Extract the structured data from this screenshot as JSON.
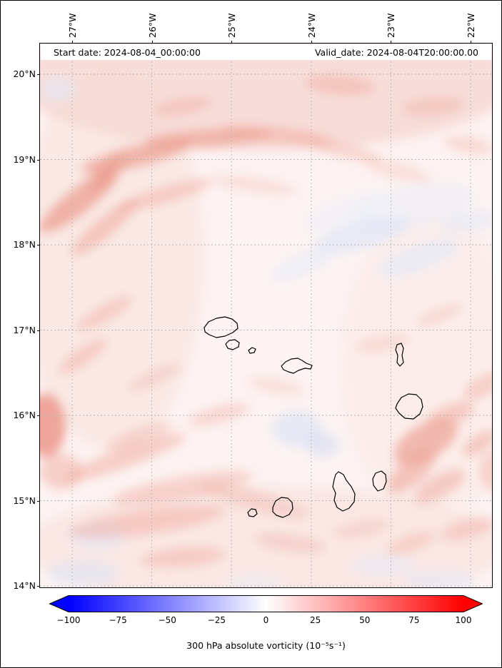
{
  "header": {
    "start_date_label": "Start date: 2024-08-04_00:00:00",
    "valid_date_label": "Valid_date: 2024-08-04T20:00:00.00"
  },
  "axes": {
    "lon_labels": [
      "27°W",
      "26°W",
      "25°W",
      "24°W",
      "23°W",
      "22°W"
    ],
    "lat_labels": [
      "20°N",
      "19°N",
      "18°N",
      "17°N",
      "16°N",
      "15°N",
      "14°N"
    ]
  },
  "colorbar": {
    "tick_labels": [
      "−100",
      "−75",
      "−50",
      "−25",
      "0",
      "25",
      "50",
      "75",
      "100"
    ],
    "label": "300 hPa absolute vorticity (10⁻⁵s⁻¹)",
    "gradient": [
      "#0000ff",
      "#ffffff",
      "#ff0000"
    ]
  },
  "chart_data": {
    "type": "heatmap",
    "variable": "300 hPa absolute vorticity",
    "units": "10⁻⁵ s⁻¹",
    "colormap": "bwr (blue-white-red) with extended triangular ends",
    "value_range": [
      -100,
      100
    ],
    "colorbar_ticks": [
      -100,
      -75,
      -50,
      -25,
      0,
      25,
      50,
      75,
      100
    ],
    "x_axis": {
      "label": "longitude",
      "tick_values_deg_west": [
        27,
        26,
        25,
        24,
        23,
        22
      ],
      "range_deg_west": [
        27.4,
        21.7
      ]
    },
    "y_axis": {
      "label": "latitude",
      "tick_values_deg_north": [
        20,
        19,
        18,
        17,
        16,
        15,
        14
      ],
      "range_deg_north": [
        14.0,
        20.35
      ]
    },
    "start_date": "2024-08-04_00:00:00",
    "valid_date": "2024-08-04T20:00:00.00",
    "region": "Cape Verde islands, eastern tropical Atlantic",
    "grid": "dashed gray graticule every 1 degree of latitude and longitude",
    "field_description": "Mostly weak positive vorticity (0 to ~25, light red) over the whole domain; stronger positive filaments (~25-50) arc along 19-19.5N across the northwest, along the west edge, over the southwest quadrant, and near 15.5-16N east of the islands; scattered weak negative patches (light blue, 0 to ~-25) near 18N in the east, around 16N in mid-domain, and south of 15N."
  },
  "map": {
    "base_color": "#fdf3f2",
    "grid_color": "#b5b5b5",
    "coast_color": "#000000",
    "blob_format": [
      "x",
      "y",
      "rx",
      "ry",
      "rotation_deg",
      "color",
      "opacity"
    ],
    "blobs": [
      [
        316,
        55,
        345,
        95,
        0,
        "#f6d6d0",
        0.75
      ],
      [
        100,
        300,
        130,
        270,
        0,
        "#f7dbd5",
        0.45
      ],
      [
        316,
        705,
        335,
        85,
        0,
        "#f7dbd5",
        0.5
      ],
      [
        550,
        450,
        130,
        210,
        0,
        "#f9e2dd",
        0.35
      ],
      [
        520,
        230,
        90,
        30,
        -12,
        "#e9edf8",
        0.55
      ],
      [
        430,
        235,
        65,
        20,
        -18,
        "#edf0fa",
        0.55
      ],
      [
        55,
        220,
        70,
        18,
        -38,
        "#ec9f91",
        0.75
      ],
      [
        95,
        180,
        35,
        12,
        -45,
        "#ea9a8b",
        0.6
      ],
      [
        135,
        158,
        80,
        15,
        -14,
        "#ec9f91",
        0.7
      ],
      [
        235,
        133,
        90,
        13,
        -4,
        "#eda294",
        0.65
      ],
      [
        330,
        128,
        80,
        12,
        6,
        "#efa99c",
        0.5
      ],
      [
        420,
        148,
        60,
        10,
        14,
        "#f1b2a6",
        0.45
      ],
      [
        90,
        258,
        60,
        14,
        -40,
        "#eda596",
        0.5
      ],
      [
        175,
        212,
        70,
        12,
        -16,
        "#efa99c",
        0.45
      ],
      [
        300,
        198,
        60,
        10,
        8,
        "#f2b8ac",
        0.35
      ],
      [
        200,
        88,
        42,
        12,
        -10,
        "#f0b0a4",
        0.45
      ],
      [
        420,
        58,
        50,
        15,
        5,
        "#efb0a3",
        0.5
      ],
      [
        550,
        88,
        45,
        14,
        -5,
        "#f0b3a7",
        0.45
      ],
      [
        600,
        142,
        35,
        12,
        10,
        "#f1b6aa",
        0.4
      ],
      [
        500,
        178,
        50,
        12,
        15,
        "#f4c4ba",
        0.4
      ],
      [
        90,
        378,
        45,
        12,
        -30,
        "#f0ada0",
        0.45
      ],
      [
        60,
        438,
        40,
        12,
        -35,
        "#efa99c",
        0.45
      ],
      [
        160,
        468,
        40,
        10,
        -25,
        "#f1b4a8",
        0.4
      ],
      [
        8,
        535,
        28,
        45,
        0,
        "#e98c7d",
        0.75
      ],
      [
        30,
        600,
        30,
        25,
        0,
        "#eda596",
        0.45
      ],
      [
        140,
        550,
        50,
        12,
        -20,
        "#f0b0a4",
        0.4
      ],
      [
        250,
        520,
        45,
        12,
        -15,
        "#f0b0a4",
        0.4
      ],
      [
        330,
        480,
        40,
        10,
        10,
        "#f2b9ad",
        0.35
      ],
      [
        480,
        420,
        40,
        12,
        -10,
        "#f3bdb2",
        0.35
      ],
      [
        560,
        380,
        35,
        10,
        -20,
        "#f1b4a8",
        0.35
      ],
      [
        450,
        268,
        70,
        20,
        -15,
        "#dfe6f6",
        0.7
      ],
      [
        530,
        300,
        60,
        18,
        -20,
        "#e2e8f7",
        0.7
      ],
      [
        370,
        308,
        50,
        15,
        -25,
        "#e6ebf8",
        0.6
      ],
      [
        600,
        250,
        40,
        15,
        -10,
        "#e2e8f7",
        0.6
      ],
      [
        360,
        540,
        35,
        25,
        0,
        "#dde4f5",
        0.75
      ],
      [
        395,
        562,
        25,
        18,
        0,
        "#d8dff3",
        0.65
      ],
      [
        25,
        65,
        25,
        18,
        0,
        "#e2e8f7",
        0.6
      ],
      [
        80,
        690,
        40,
        20,
        0,
        "#e2e8f7",
        0.6
      ],
      [
        60,
        742,
        50,
        18,
        0,
        "#dde4f5",
        0.6
      ],
      [
        480,
        732,
        45,
        15,
        0,
        "#e6ebf8",
        0.55
      ],
      [
        560,
        752,
        50,
        14,
        0,
        "#e2e8f7",
        0.55
      ],
      [
        300,
        755,
        40,
        12,
        0,
        "#e9edf8",
        0.5
      ],
      [
        540,
        558,
        50,
        25,
        -30,
        "#eb9d8e",
        0.65
      ],
      [
        520,
        600,
        42,
        18,
        -40,
        "#eda294",
        0.55
      ],
      [
        575,
        520,
        35,
        15,
        -20,
        "#efa99c",
        0.5
      ],
      [
        615,
        560,
        28,
        12,
        -35,
        "#eda596",
        0.5
      ],
      [
        640,
        600,
        25,
        30,
        0,
        "#efa99c",
        0.4
      ],
      [
        620,
        480,
        30,
        14,
        -30,
        "#f0ada0",
        0.45
      ],
      [
        120,
        580,
        90,
        14,
        -20,
        "#efa99c",
        0.5
      ],
      [
        200,
        622,
        100,
        16,
        -10,
        "#f0ada0",
        0.45
      ],
      [
        150,
        670,
        110,
        18,
        -8,
        "#efa99c",
        0.45
      ],
      [
        300,
        640,
        80,
        14,
        15,
        "#f1b2a6",
        0.4
      ],
      [
        200,
        720,
        60,
        14,
        -5,
        "#f0ada0",
        0.45
      ],
      [
        350,
        700,
        50,
        12,
        8,
        "#f1b2a6",
        0.4
      ],
      [
        450,
        680,
        40,
        10,
        -10,
        "#f1b4a8",
        0.38
      ],
      [
        520,
        700,
        35,
        12,
        -20,
        "#f0ada0",
        0.42
      ],
      [
        600,
        680,
        40,
        14,
        -15,
        "#efb0a3",
        0.45
      ],
      [
        560,
        620,
        40,
        16,
        -30,
        "#eda294",
        0.45
      ]
    ],
    "islands": {
      "santo-antao": [
        [
          230,
          398
        ],
        [
          236,
          390
        ],
        [
          247,
          385
        ],
        [
          259,
          383
        ],
        [
          269,
          386
        ],
        [
          276,
          392
        ],
        [
          277,
          399
        ],
        [
          270,
          405
        ],
        [
          259,
          410
        ],
        [
          247,
          412
        ],
        [
          237,
          408
        ],
        [
          231,
          404
        ]
      ],
      "sao-vicente": [
        [
          260,
          421
        ],
        [
          265,
          416
        ],
        [
          273,
          415
        ],
        [
          279,
          419
        ],
        [
          278,
          425
        ],
        [
          270,
          429
        ],
        [
          263,
          427
        ]
      ],
      "santa-luzia": [
        [
          292,
          430
        ],
        [
          297,
          426
        ],
        [
          302,
          428
        ],
        [
          300,
          433
        ],
        [
          294,
          434
        ]
      ],
      "sao-nicolau": [
        [
          338,
          452
        ],
        [
          344,
          446
        ],
        [
          352,
          442
        ],
        [
          361,
          441
        ],
        [
          367,
          444
        ],
        [
          373,
          448
        ],
        [
          381,
          451
        ],
        [
          379,
          456
        ],
        [
          371,
          455
        ],
        [
          362,
          458
        ],
        [
          355,
          462
        ],
        [
          348,
          460
        ],
        [
          341,
          457
        ]
      ],
      "sal": [
        [
          500,
          422
        ],
        [
          506,
          420
        ],
        [
          509,
          427
        ],
        [
          507,
          437
        ],
        [
          509,
          447
        ],
        [
          504,
          452
        ],
        [
          500,
          447
        ],
        [
          501,
          437
        ],
        [
          498,
          429
        ]
      ],
      "boa-vista": [
        [
          500,
          505
        ],
        [
          506,
          496
        ],
        [
          516,
          491
        ],
        [
          527,
          492
        ],
        [
          534,
          499
        ],
        [
          536,
          509
        ],
        [
          532,
          519
        ],
        [
          523,
          526
        ],
        [
          511,
          525
        ],
        [
          503,
          518
        ],
        [
          498,
          511
        ]
      ],
      "maio": [
        [
          470,
          602
        ],
        [
          478,
          599
        ],
        [
          484,
          604
        ],
        [
          485,
          614
        ],
        [
          481,
          624
        ],
        [
          473,
          627
        ],
        [
          467,
          619
        ],
        [
          466,
          610
        ]
      ],
      "santiago": [
        [
          418,
          600
        ],
        [
          425,
          604
        ],
        [
          429,
          612
        ],
        [
          436,
          621
        ],
        [
          441,
          631
        ],
        [
          440,
          642
        ],
        [
          433,
          651
        ],
        [
          424,
          655
        ],
        [
          416,
          650
        ],
        [
          412,
          640
        ],
        [
          414,
          630
        ],
        [
          410,
          621
        ],
        [
          412,
          611
        ],
        [
          414,
          604
        ]
      ],
      "fogo": [
        [
          326,
          650
        ],
        [
          330,
          641
        ],
        [
          338,
          636
        ],
        [
          347,
          637
        ],
        [
          353,
          643
        ],
        [
          354,
          652
        ],
        [
          349,
          660
        ],
        [
          340,
          664
        ],
        [
          331,
          661
        ],
        [
          326,
          656
        ]
      ],
      "brava": [
        [
          291,
          657
        ],
        [
          296,
          652
        ],
        [
          302,
          653
        ],
        [
          304,
          659
        ],
        [
          299,
          663
        ],
        [
          293,
          662
        ]
      ]
    }
  }
}
